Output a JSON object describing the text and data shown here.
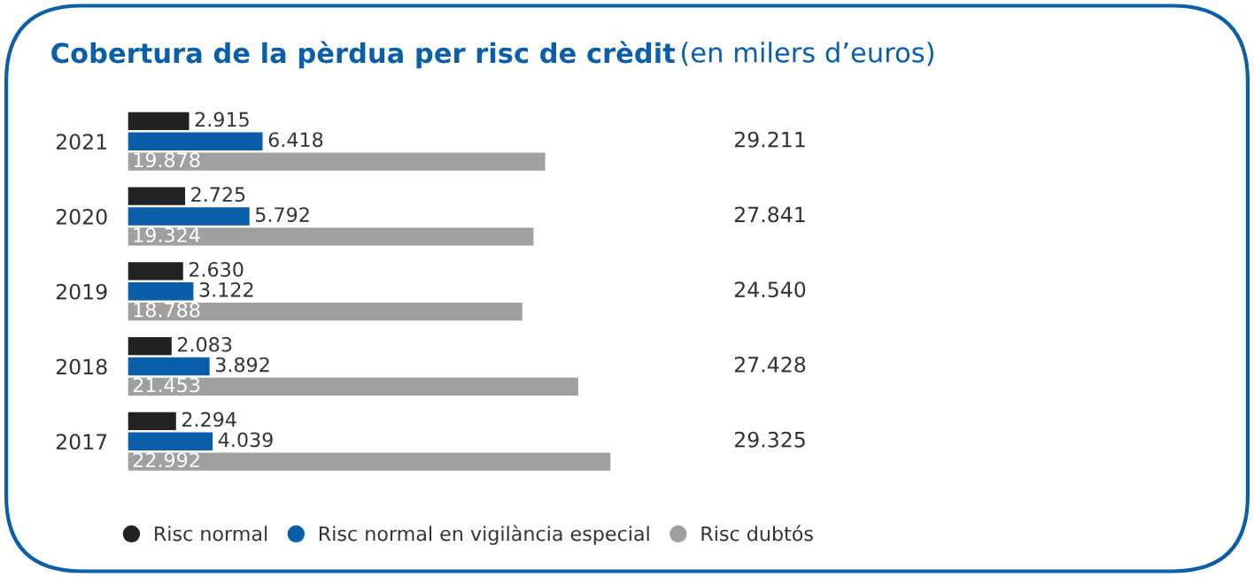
{
  "chart_data": {
    "type": "bar",
    "orientation": "horizontal",
    "title": "Cobertura de la pèrdua per risc de crèdit",
    "subtitle": "(en milers d’euros)",
    "categories": [
      "2021",
      "2020",
      "2019",
      "2018",
      "2017"
    ],
    "series": [
      {
        "name": "Risc normal",
        "color": "#222222",
        "values": [
          2915,
          2725,
          2630,
          2083,
          2294
        ],
        "value_labels": [
          "2.915",
          "2.725",
          "2.630",
          "2.083",
          "2.294"
        ]
      },
      {
        "name": "Risc normal en vigilància especial",
        "color": "#0a5fa8",
        "values": [
          6418,
          5792,
          3122,
          3892,
          4039
        ],
        "value_labels": [
          "6.418",
          "5.792",
          "3.122",
          "3.892",
          "4.039"
        ]
      },
      {
        "name": "Risc dubtós",
        "color": "#a0a0a0",
        "values": [
          19878,
          19324,
          18788,
          21453,
          22992
        ],
        "value_labels": [
          "19.878",
          "19.324",
          "18.788",
          "21.453",
          "22.992"
        ]
      }
    ],
    "annotations": [
      "29.211",
      "27.841",
      "24.540",
      "27.428",
      "29.325"
    ],
    "xlim": [
      0,
      23000
    ],
    "tick_labels": "y",
    "legend": "bottom",
    "grid": false
  }
}
